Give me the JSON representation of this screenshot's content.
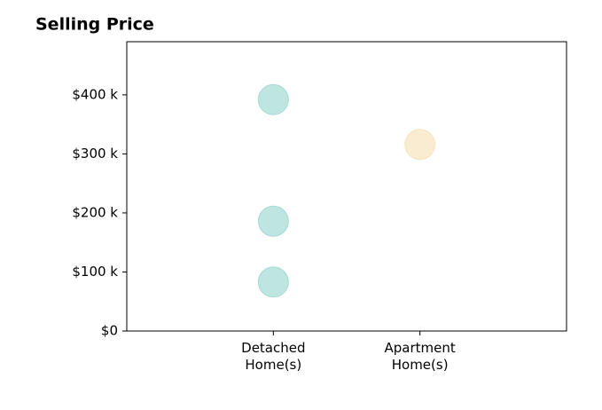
{
  "chart_data": {
    "type": "scatter",
    "title": "Selling Price",
    "x": [
      "Detached Home(s)",
      "Detached Home(s)",
      "Detached Home(s)",
      "Apartment Home(s)"
    ],
    "values": [
      392000,
      186000,
      83000,
      316000
    ],
    "colors": [
      "#80cbc4",
      "#80cbc4",
      "#80cbc4",
      "#f3d9a4"
    ],
    "ylim": [
      0,
      490000
    ],
    "yticks": [
      {
        "value": 0,
        "label": "$0"
      },
      {
        "value": 100000,
        "label": "$100 k"
      },
      {
        "value": 200000,
        "label": "$200 k"
      },
      {
        "value": 300000,
        "label": "$300 k"
      },
      {
        "value": 400000,
        "label": "$400 k"
      }
    ],
    "grid": false
  }
}
